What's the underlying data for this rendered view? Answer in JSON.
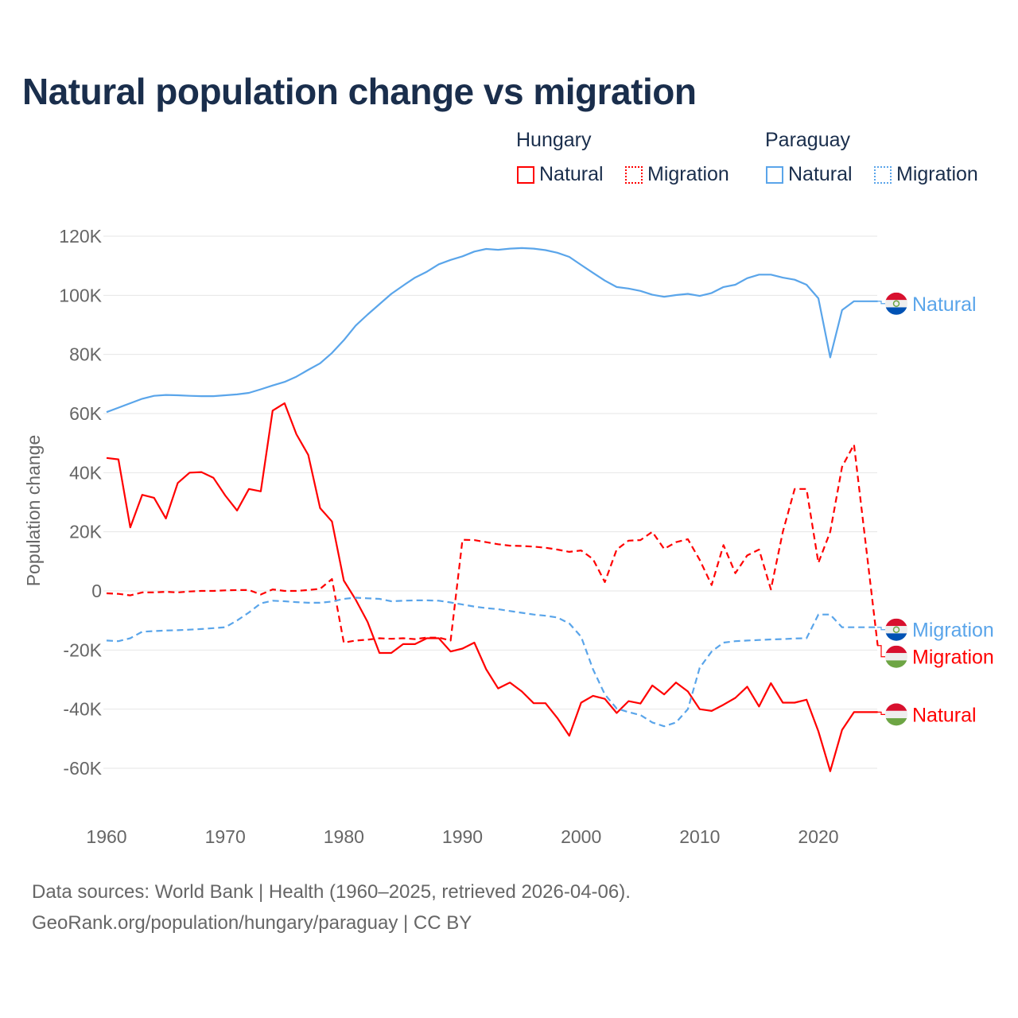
{
  "chart_data": {
    "type": "line",
    "title": "Natural population change vs migration",
    "xlabel": "",
    "ylabel": "Population change",
    "xlim": [
      1960,
      2025
    ],
    "ylim": [
      -75000,
      125000
    ],
    "x_ticks": [
      1960,
      1970,
      1980,
      1990,
      2000,
      2010,
      2020
    ],
    "x_tick_labels": [
      "1960",
      "1970",
      "1980",
      "1990",
      "2000",
      "2010",
      "2020"
    ],
    "y_ticks": [
      -60000,
      -40000,
      -20000,
      0,
      20000,
      40000,
      60000,
      80000,
      100000,
      120000
    ],
    "y_tick_labels": [
      "-60K",
      "-40K",
      "-20K",
      "0",
      "20K",
      "40K",
      "60K",
      "80K",
      "100K",
      "120K"
    ],
    "grid": true,
    "legend": {
      "placement": "top-right",
      "groups": [
        {
          "country": "Hungary",
          "items": [
            "Natural",
            "Migration"
          ]
        },
        {
          "country": "Paraguay",
          "items": [
            "Natural",
            "Migration"
          ]
        }
      ]
    },
    "x_start": 1960,
    "series": [
      {
        "name": "Natural",
        "country": "Hungary",
        "color": "#ff0000",
        "dash": false,
        "end_label": "Natural",
        "values": [
          45000,
          44500,
          21500,
          32500,
          31500,
          24500,
          36500,
          40000,
          40200,
          38300,
          32300,
          27200,
          34500,
          33700,
          61000,
          63500,
          53000,
          46000,
          28000,
          23500,
          3500,
          -3000,
          -10500,
          -21000,
          -21000,
          -18000,
          -18000,
          -16000,
          -16000,
          -20500,
          -19500,
          -17500,
          -26500,
          -33000,
          -31000,
          -34000,
          -38000,
          -38000,
          -43000,
          -49000,
          -37800,
          -35500,
          -36500,
          -41300,
          -37300,
          -38100,
          -32000,
          -35000,
          -31000,
          -34000,
          -40000,
          -40600,
          -38500,
          -36200,
          -32400,
          -39100,
          -31200,
          -37800,
          -37800,
          -36800,
          -47500,
          -61000,
          -47000,
          -41000,
          -41000,
          -41000
        ]
      },
      {
        "name": "Migration",
        "country": "Hungary",
        "color": "#ff0000",
        "dash": true,
        "end_label": "Migration",
        "values": [
          -800,
          -1000,
          -1500,
          -500,
          -500,
          -300,
          -500,
          -200,
          0,
          0,
          200,
          300,
          300,
          -1200,
          500,
          0,
          0,
          300,
          700,
          4000,
          -17500,
          -16800,
          -16500,
          -16000,
          -16200,
          -16000,
          -16300,
          -15800,
          -15800,
          -16800,
          17300,
          17200,
          16500,
          15800,
          15300,
          15200,
          15000,
          14600,
          14000,
          13200,
          13700,
          10800,
          3000,
          14000,
          17000,
          17200,
          20000,
          14200,
          16500,
          17500,
          10500,
          2000,
          15500,
          6000,
          12000,
          14000,
          500,
          20000,
          34500,
          34500,
          9500,
          20000,
          42000,
          49500,
          15500,
          -18500
        ]
      },
      {
        "name": "Natural",
        "country": "Paraguay",
        "color": "#5aa5ea",
        "dash": false,
        "end_label": "Natural",
        "values": [
          60500,
          62000,
          63500,
          65000,
          66000,
          66300,
          66200,
          66000,
          65900,
          65900,
          66200,
          66500,
          67000,
          68200,
          69500,
          70700,
          72500,
          74800,
          77000,
          80500,
          84800,
          89800,
          93500,
          97000,
          100500,
          103300,
          106000,
          108000,
          110500,
          112000,
          113200,
          114800,
          115700,
          115400,
          115800,
          116000,
          115800,
          115300,
          114400,
          113000,
          110300,
          107600,
          105000,
          102800,
          102300,
          101500,
          100200,
          99500,
          100100,
          100500,
          99800,
          100800,
          102800,
          103600,
          105800,
          107000,
          107000,
          106000,
          105300,
          103600,
          99000,
          79000,
          95000,
          98000,
          98000,
          98000
        ]
      },
      {
        "name": "Migration",
        "country": "Paraguay",
        "color": "#5aa5ea",
        "dash": true,
        "end_label": "Migration",
        "values": [
          -16800,
          -17000,
          -16000,
          -13800,
          -13600,
          -13400,
          -13300,
          -13100,
          -12900,
          -12600,
          -12300,
          -10000,
          -7300,
          -4200,
          -3300,
          -3500,
          -3800,
          -4000,
          -4000,
          -3600,
          -2700,
          -2300,
          -2500,
          -2700,
          -3500,
          -3300,
          -3200,
          -3200,
          -3300,
          -3900,
          -4600,
          -5300,
          -5800,
          -6200,
          -6800,
          -7400,
          -8000,
          -8400,
          -9000,
          -11000,
          -15500,
          -26500,
          -35000,
          -39800,
          -41000,
          -42000,
          -44500,
          -45800,
          -44500,
          -40000,
          -26000,
          -20500,
          -17500,
          -17000,
          -16800,
          -16600,
          -16400,
          -16300,
          -16100,
          -16000,
          -8000,
          -8000,
          -12300,
          -12300,
          -12300,
          -12300
        ]
      }
    ]
  },
  "footer": {
    "line1": "Data sources: World Bank | Health (1960–2025, retrieved 2026-04-06).",
    "line2": "GeoRank.org/population/hungary/paraguay | CC BY"
  }
}
